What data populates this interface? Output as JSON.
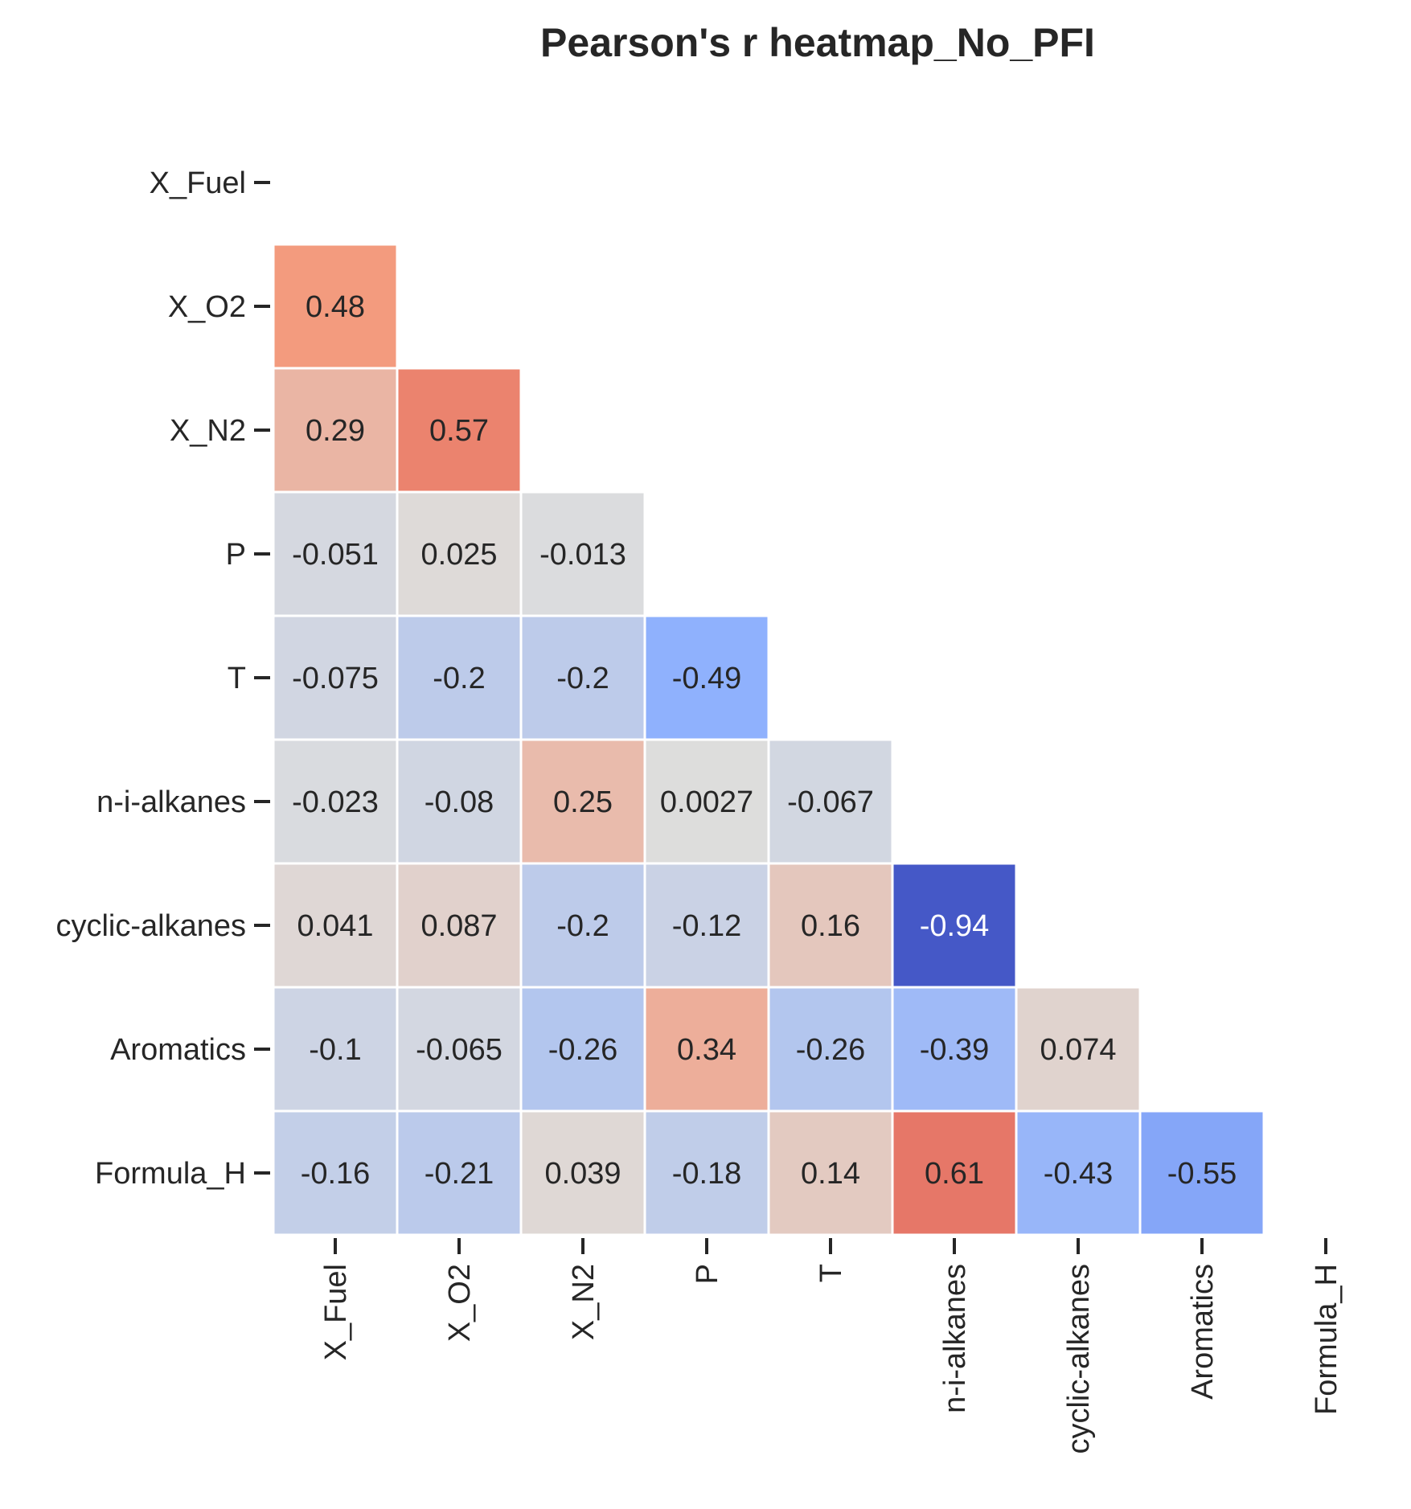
{
  "chart_data": {
    "type": "heatmap",
    "title": "Pearson's r heatmap_No_PFI",
    "variables": [
      "X_Fuel",
      "X_O2",
      "X_N2",
      "P",
      "T",
      "n-i-alkanes",
      "cyclic-alkanes",
      "Aromatics",
      "Formula_H"
    ],
    "mask": "upper-triangle-including-diagonal",
    "colormap": "coolwarm",
    "vmin": -1,
    "vmax": 1,
    "colorbar": false,
    "values": [
      [
        null,
        null,
        null,
        null,
        null,
        null,
        null,
        null,
        null
      ],
      [
        0.48,
        null,
        null,
        null,
        null,
        null,
        null,
        null,
        null
      ],
      [
        0.29,
        0.57,
        null,
        null,
        null,
        null,
        null,
        null,
        null
      ],
      [
        -0.051,
        0.025,
        -0.013,
        null,
        null,
        null,
        null,
        null,
        null
      ],
      [
        -0.075,
        -0.2,
        -0.2,
        -0.49,
        null,
        null,
        null,
        null,
        null
      ],
      [
        -0.023,
        -0.08,
        0.25,
        0.0027,
        -0.067,
        null,
        null,
        null,
        null
      ],
      [
        0.041,
        0.087,
        -0.2,
        -0.12,
        0.16,
        -0.94,
        null,
        null,
        null
      ],
      [
        -0.1,
        -0.065,
        -0.26,
        0.34,
        -0.26,
        -0.39,
        0.074,
        null,
        null
      ],
      [
        -0.16,
        -0.21,
        0.039,
        -0.18,
        0.14,
        0.61,
        -0.43,
        -0.55,
        null
      ]
    ],
    "labels": [
      [
        "",
        "",
        "",
        "",
        "",
        "",
        "",
        "",
        ""
      ],
      [
        "0.48",
        "",
        "",
        "",
        "",
        "",
        "",
        "",
        ""
      ],
      [
        "0.29",
        "0.57",
        "",
        "",
        "",
        "",
        "",
        "",
        ""
      ],
      [
        "-0.051",
        "0.025",
        "-0.013",
        "",
        "",
        "",
        "",
        "",
        ""
      ],
      [
        "-0.075",
        "-0.2",
        "-0.2",
        "-0.49",
        "",
        "",
        "",
        "",
        ""
      ],
      [
        "-0.023",
        "-0.08",
        "0.25",
        "0.0027",
        "-0.067",
        "",
        "",
        "",
        ""
      ],
      [
        "0.041",
        "0.087",
        "-0.2",
        "-0.12",
        "0.16",
        "-0.94",
        "",
        "",
        ""
      ],
      [
        "-0.1",
        "-0.065",
        "-0.26",
        "0.34",
        "-0.26",
        "-0.39",
        "0.074",
        "",
        ""
      ],
      [
        "-0.16",
        "-0.21",
        "0.039",
        "-0.18",
        "0.14",
        "0.61",
        "-0.43",
        "-0.55",
        ""
      ]
    ]
  }
}
